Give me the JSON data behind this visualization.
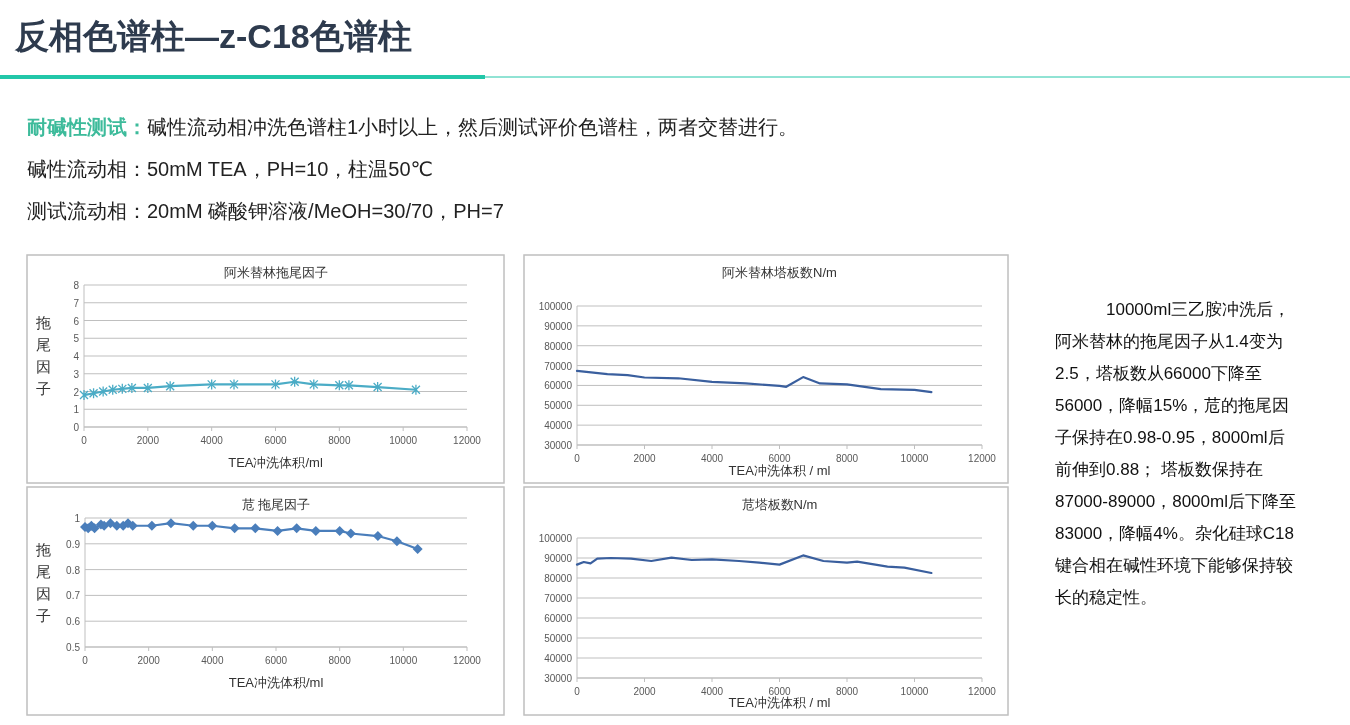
{
  "chart_data": [
    {
      "type": "other",
      "title": "反相色谱柱—z-C18色谱柱",
      "annotations": [
        "耐碱性测试：碱性流动相冲洗色谱柱1小时以上，然后测试评价色谱柱，两者交替进行。",
        "碱性流动相：50mM TEA，PH=10，柱温50℃",
        "测试流动相：20mM 磷酸钾溶液/MeOH=30/70，PH=7",
        "10000ml三乙胺冲洗后，阿米替林的拖尾因子从1.4变为2.5，塔板数从66000下降至56000，降幅15%，苊的拖尾因子保持在0.98-0.95，8000ml后前伸到0.88； 塔板数保持在87000-89000，8000ml后下降至83000，降幅4%。杂化硅球C18键合相在碱性环境下能够保持较长的稳定性。"
      ]
    },
    {
      "type": "line",
      "title": "阿米替林拖尾因子",
      "xlabel": "TEA冲洗体积/ml",
      "ylabel": "拖尾因子",
      "xlim": [
        0,
        12000
      ],
      "xticks": [
        0,
        2000,
        4000,
        6000,
        8000,
        10000,
        12000
      ],
      "ylim": [
        0,
        8
      ],
      "yticks": [
        0,
        1,
        2,
        3,
        4,
        5,
        6,
        7,
        8
      ],
      "grid": "y",
      "marker": "cross",
      "series": [
        {
          "color": "#4bacc6",
          "x": [
            0,
            300,
            600,
            900,
            1200,
            1500,
            2000,
            2700,
            4000,
            4700,
            6000,
            6600,
            7200,
            8000,
            8300,
            9200,
            10400
          ],
          "values": [
            1.8,
            1.9,
            2.0,
            2.1,
            2.15,
            2.2,
            2.2,
            2.3,
            2.4,
            2.4,
            2.4,
            2.55,
            2.4,
            2.35,
            2.35,
            2.25,
            2.1
          ]
        }
      ]
    },
    {
      "type": "line",
      "title": "阿米替林塔板数N/m",
      "xlabel": "TEA冲洗体积 / ml",
      "xlim": [
        0,
        12000
      ],
      "xticks": [
        0,
        2000,
        4000,
        6000,
        8000,
        10000,
        12000
      ],
      "ylim": [
        30000,
        100000
      ],
      "yticks": [
        30000,
        40000,
        50000,
        60000,
        70000,
        80000,
        90000,
        100000
      ],
      "grid": "y",
      "marker": "none",
      "series": [
        {
          "color": "#3a5f9e",
          "x": [
            0,
            900,
            1500,
            2000,
            3000,
            4000,
            5000,
            6000,
            6200,
            6700,
            7200,
            8000,
            9000,
            10000,
            10500
          ],
          "values": [
            67300,
            65700,
            65200,
            64000,
            63600,
            61800,
            61000,
            59800,
            59300,
            64200,
            61000,
            60500,
            58100,
            57800,
            56600
          ]
        }
      ]
    },
    {
      "type": "line",
      "title": "苊 拖尾因子",
      "xlabel": "TEA冲洗体积/ml",
      "ylabel": "拖尾因子",
      "xlim": [
        0,
        12000
      ],
      "xticks": [
        0,
        2000,
        4000,
        6000,
        8000,
        10000,
        12000
      ],
      "ylim": [
        0.5,
        1
      ],
      "yticks": [
        0.5,
        0.6,
        0.7,
        0.8,
        0.9,
        1
      ],
      "grid": "y",
      "marker": "diamond",
      "series": [
        {
          "color": "#4a7ebb",
          "x": [
            0,
            100,
            200,
            300,
            500,
            600,
            800,
            1000,
            1200,
            1350,
            1500,
            2100,
            2700,
            3400,
            4000,
            4700,
            5350,
            6050,
            6650,
            7250,
            8000,
            8350,
            9200,
            9800,
            10450
          ],
          "values": [
            0.965,
            0.96,
            0.97,
            0.96,
            0.975,
            0.97,
            0.98,
            0.97,
            0.97,
            0.98,
            0.97,
            0.97,
            0.98,
            0.97,
            0.97,
            0.96,
            0.96,
            0.95,
            0.96,
            0.95,
            0.95,
            0.94,
            0.93,
            0.91,
            0.88
          ]
        }
      ]
    },
    {
      "type": "line",
      "title": "苊塔板数N/m",
      "xlabel": "TEA冲洗体积 /  ml",
      "xlim": [
        0,
        12000
      ],
      "xticks": [
        0,
        2000,
        4000,
        6000,
        8000,
        10000,
        12000
      ],
      "ylim": [
        30000,
        100000
      ],
      "yticks": [
        30000,
        40000,
        50000,
        60000,
        70000,
        80000,
        90000,
        100000
      ],
      "grid": "y",
      "marker": "none",
      "series": [
        {
          "color": "#3a5f9e",
          "x": [
            0,
            200,
            400,
            600,
            1000,
            1600,
            2200,
            2800,
            3400,
            4000,
            4800,
            5400,
            6000,
            6700,
            7300,
            8000,
            8300,
            9200,
            9700,
            10500
          ],
          "values": [
            86700,
            88000,
            87300,
            89700,
            90000,
            89700,
            88500,
            90200,
            89000,
            89300,
            88500,
            87700,
            86700,
            91300,
            88500,
            87700,
            88200,
            85700,
            85200,
            82500
          ]
        }
      ]
    }
  ]
}
